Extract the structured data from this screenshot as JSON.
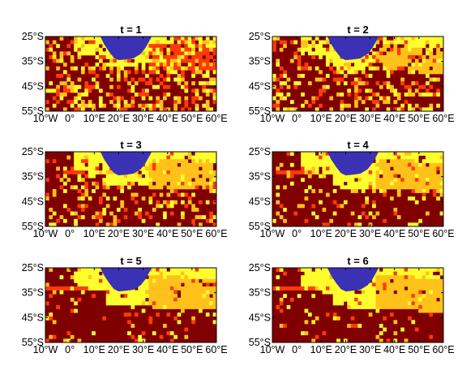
{
  "figure": {
    "panels": [
      {
        "title": "t = 1",
        "t": 1
      },
      {
        "title": "t = 2",
        "t": 2
      },
      {
        "title": "t = 3",
        "t": 3
      },
      {
        "title": "t = 4",
        "t": 4
      },
      {
        "title": "t = 5",
        "t": 5
      },
      {
        "title": "t = 6",
        "t": 6
      }
    ],
    "lat_ticks": [
      "25°S",
      "35°S",
      "45°S",
      "55°S"
    ],
    "lon_ticks": [
      "10°W",
      "0°",
      "10°E",
      "20°E",
      "30°E",
      "40°E",
      "50°E",
      "60°E"
    ],
    "lon_range": [
      -10,
      60
    ],
    "lat_range": [
      -55,
      -25
    ],
    "colors": {
      "dark_red": "#800000",
      "red": "#ff3a0a",
      "orange": "#ffc21a",
      "yellow": "#ffff2e",
      "land_blue": "#3b31b5"
    },
    "region_icon": "africa-landmass-blue"
  }
}
